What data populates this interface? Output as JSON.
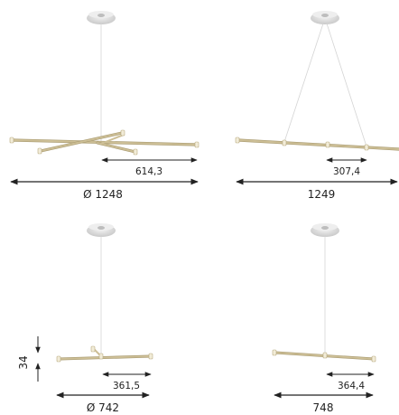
{
  "colors": {
    "rod": "#c8b991",
    "rod_shadow": "#a89a70",
    "cap": "#f2ecd8",
    "canopy": "#dcdcdc",
    "cable": "#cccccc",
    "dimension": "#222222"
  },
  "views": [
    {
      "id": "top-left",
      "inner_dimension": "614,3",
      "overall_dimension": "Ø 1248"
    },
    {
      "id": "top-right",
      "inner_dimension": "307,4",
      "overall_dimension": "1249"
    },
    {
      "id": "bottom-left",
      "inner_dimension": "361,5",
      "overall_dimension": "Ø 742",
      "height_dimension": "34"
    },
    {
      "id": "bottom-right",
      "inner_dimension": "364,4",
      "overall_dimension": "748"
    }
  ]
}
